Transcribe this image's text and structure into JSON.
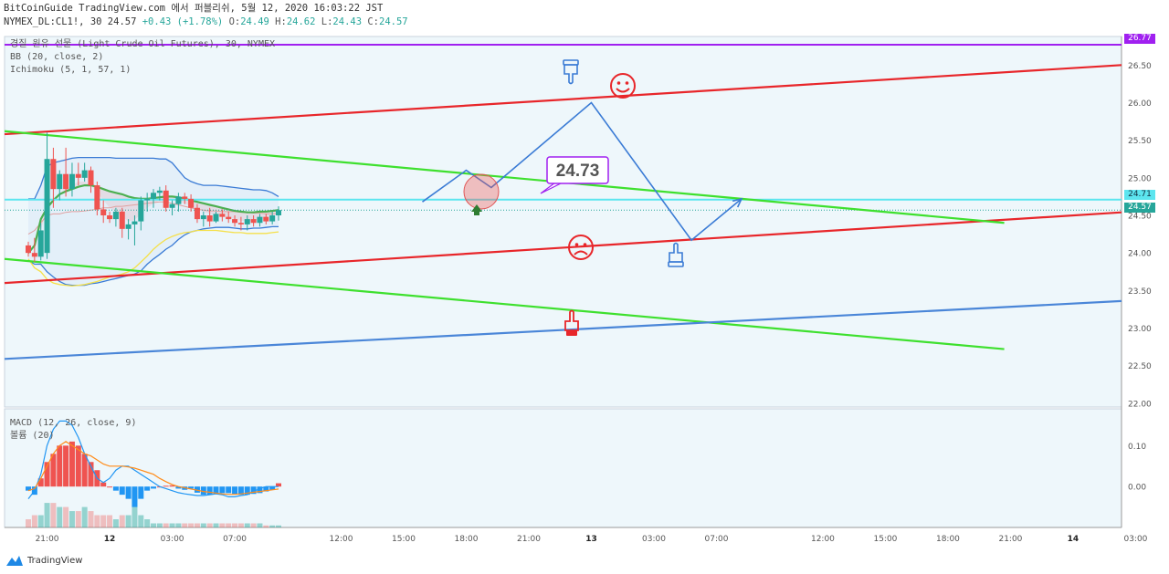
{
  "header": {
    "line1": "BitCoinGuide TradingView.com 에서 퍼블리쉬, 5월 12, 2020 16:03:22 JST",
    "symbol": "NYMEX_DL:CL1!, 30",
    "last": "24.57",
    "change": "+0.43 (+1.78%)",
    "o_label": "O:",
    "o": "24.49",
    "h_label": "H:",
    "h": "24.62",
    "l_label": "L:",
    "l": "24.43",
    "c_label": "C:",
    "c": "24.57"
  },
  "legend": {
    "title": "경질 원유 선물 (Light Crude Oil Futures), 30, NYMEX",
    "bb": "BB (20, close, 2)",
    "ichimoku": "Ichimoku (5, 1, 57, 1)",
    "macd": "MACD (12, 26, close, 9)",
    "volume": "볼륨 (20)"
  },
  "price_tags": {
    "top": "26.77",
    "cyan": "24.71",
    "last": "24.57"
  },
  "callout": "24.73",
  "logo": "TradingView",
  "colors": {
    "up": "#26a69a",
    "down": "#ef5350",
    "red_line": "#e8262a",
    "green_line": "#3ee02e",
    "blue_line": "#4a86d8",
    "cyan_line": "#5ce5ef",
    "purple_line": "#a020f0",
    "bb_band": "#3a7bd5",
    "ichimoku_yellow": "#f5e04a"
  },
  "chart_data": {
    "type": "candlestick",
    "main_axis": {
      "ylim": [
        21.95,
        26.88
      ],
      "ticks": [
        "26.50",
        "26.00",
        "25.50",
        "25.00",
        "24.50",
        "24.00",
        "23.50",
        "23.00",
        "22.50",
        "22.00"
      ],
      "tick_values": [
        26.5,
        26.0,
        25.5,
        25.0,
        24.5,
        24.0,
        23.5,
        23.0,
        22.5,
        22.0
      ]
    },
    "macd_axis": {
      "ylim": [
        -0.1,
        0.19
      ],
      "ticks": [
        "0.10",
        "0.00"
      ],
      "tick_values": [
        0.1,
        0.0
      ]
    },
    "x_ticks": [
      {
        "label": "21:00",
        "i": 3
      },
      {
        "label": "12",
        "i": 13
      },
      {
        "label": "03:00",
        "i": 23
      },
      {
        "label": "07:00",
        "i": 33
      },
      {
        "label": "12:00",
        "i": 50
      },
      {
        "label": "15:00",
        "i": 60
      },
      {
        "label": "18:00",
        "i": 70
      },
      {
        "label": "21:00",
        "i": 80
      },
      {
        "label": "13",
        "i": 90
      },
      {
        "label": "03:00",
        "i": 100
      },
      {
        "label": "07:00",
        "i": 110
      },
      {
        "label": "12:00",
        "i": 127
      },
      {
        "label": "15:00",
        "i": 137
      },
      {
        "label": "18:00",
        "i": 147
      },
      {
        "label": "21:00",
        "i": 157
      },
      {
        "label": "14",
        "i": 167
      },
      {
        "label": "03:00",
        "i": 177
      }
    ],
    "candles": [
      [
        24.1,
        24.15,
        23.95,
        24.0
      ],
      [
        24.0,
        24.2,
        23.88,
        23.95
      ],
      [
        23.95,
        24.4,
        23.9,
        24.3
      ],
      [
        24.0,
        25.6,
        23.92,
        25.25
      ],
      [
        25.25,
        25.4,
        24.6,
        24.85
      ],
      [
        24.85,
        25.1,
        24.7,
        25.05
      ],
      [
        25.05,
        25.4,
        24.75,
        24.85
      ],
      [
        24.85,
        25.2,
        24.75,
        25.05
      ],
      [
        25.05,
        25.2,
        24.9,
        25.0
      ],
      [
        25.0,
        25.2,
        24.95,
        25.1
      ],
      [
        25.1,
        25.15,
        24.8,
        24.9
      ],
      [
        24.9,
        24.95,
        24.5,
        24.58
      ],
      [
        24.58,
        24.7,
        24.4,
        24.5
      ],
      [
        24.5,
        24.55,
        24.4,
        24.45
      ],
      [
        24.45,
        24.6,
        24.35,
        24.55
      ],
      [
        24.55,
        24.6,
        24.2,
        24.32
      ],
      [
        24.32,
        24.45,
        24.18,
        24.38
      ],
      [
        24.38,
        24.5,
        24.1,
        24.42
      ],
      [
        24.42,
        24.75,
        24.3,
        24.7
      ],
      [
        24.7,
        24.8,
        24.55,
        24.72
      ],
      [
        24.72,
        24.85,
        24.6,
        24.8
      ],
      [
        24.8,
        24.88,
        24.7,
        24.83
      ],
      [
        24.83,
        24.9,
        24.55,
        24.6
      ],
      [
        24.6,
        24.7,
        24.5,
        24.65
      ],
      [
        24.65,
        24.8,
        24.55,
        24.75
      ],
      [
        24.75,
        24.8,
        24.65,
        24.72
      ],
      [
        24.72,
        24.78,
        24.55,
        24.6
      ],
      [
        24.6,
        24.65,
        24.4,
        24.45
      ],
      [
        24.45,
        24.55,
        24.35,
        24.5
      ],
      [
        24.5,
        24.6,
        24.35,
        24.42
      ],
      [
        24.42,
        24.55,
        24.4,
        24.52
      ],
      [
        24.52,
        24.58,
        24.42,
        24.48
      ],
      [
        24.48,
        24.55,
        24.4,
        24.45
      ],
      [
        24.45,
        24.5,
        24.35,
        24.4
      ],
      [
        24.4,
        24.48,
        24.3,
        24.38
      ],
      [
        24.38,
        24.5,
        24.3,
        24.45
      ],
      [
        24.45,
        24.5,
        24.35,
        24.4
      ],
      [
        24.4,
        24.52,
        24.35,
        24.48
      ],
      [
        24.48,
        24.52,
        24.38,
        24.42
      ],
      [
        24.42,
        24.55,
        24.38,
        24.5
      ],
      [
        24.5,
        24.62,
        24.43,
        24.57
      ]
    ],
    "bb_upper": [
      24.72,
      24.72,
      24.9,
      25.15,
      25.2,
      25.22,
      25.24,
      25.26,
      25.27,
      25.27,
      25.27,
      25.27,
      25.27,
      25.27,
      25.26,
      25.26,
      25.26,
      25.26,
      25.26,
      25.26,
      25.26,
      25.25,
      25.25,
      25.2,
      25.1,
      25.0,
      24.95,
      24.92,
      24.9,
      24.9,
      24.9,
      24.89,
      24.88,
      24.87,
      24.86,
      24.85,
      24.84,
      24.84,
      24.83,
      24.8,
      24.75
    ],
    "bb_basis": [
      24.25,
      24.3,
      24.4,
      24.5,
      24.52,
      24.52,
      24.54,
      24.55,
      24.55,
      24.56,
      24.57,
      24.58,
      24.6,
      24.6,
      24.62,
      24.62,
      24.63,
      24.64,
      24.65,
      24.66,
      24.67,
      24.68,
      24.68,
      24.66,
      24.64,
      24.62,
      24.6,
      24.58,
      24.57,
      24.56,
      24.56,
      24.55,
      24.55,
      24.55,
      24.54,
      24.54,
      24.53,
      24.53,
      24.52,
      24.52,
      24.52
    ],
    "bb_lower": [
      23.9,
      23.85,
      23.85,
      23.75,
      23.68,
      23.62,
      23.58,
      23.57,
      23.57,
      23.57,
      23.59,
      23.6,
      23.62,
      23.64,
      23.66,
      23.68,
      23.7,
      23.72,
      23.76,
      23.85,
      23.92,
      23.98,
      24.05,
      24.1,
      24.18,
      24.24,
      24.28,
      24.3,
      24.32,
      24.33,
      24.34,
      24.34,
      24.34,
      24.33,
      24.32,
      24.32,
      24.33,
      24.33,
      24.34,
      24.35,
      24.35
    ],
    "ichimoku_conversion": [
      24.05,
      24.1,
      24.3,
      24.6,
      24.7,
      24.8,
      24.85,
      24.9,
      24.95,
      24.95,
      24.9,
      24.8,
      24.7,
      24.6,
      24.55,
      24.48,
      24.42,
      24.44,
      24.52,
      24.6,
      24.66,
      24.7,
      24.72,
      24.7,
      24.68,
      24.66,
      24.62,
      24.58,
      24.55,
      24.52,
      24.5,
      24.49,
      24.47,
      24.45,
      24.43,
      24.42,
      24.43,
      24.45,
      24.47,
      24.5,
      24.53
    ],
    "ichimoku_base": [
      24.0,
      24.1,
      24.45,
      24.6,
      24.7,
      24.78,
      24.82,
      24.85,
      24.88,
      24.9,
      24.9,
      24.88,
      24.85,
      24.82,
      24.8,
      24.78,
      24.75,
      24.73,
      24.72,
      24.72,
      24.73,
      24.74,
      24.75,
      24.75,
      24.74,
      24.72,
      24.7,
      24.68,
      24.66,
      24.64,
      24.62,
      24.6,
      24.58,
      24.56,
      24.55,
      24.54,
      24.54,
      24.55,
      24.55,
      24.56,
      24.57
    ],
    "ichimoku_lagging": [
      23.92,
      23.8,
      23.75,
      23.65,
      23.6,
      23.58,
      23.57,
      23.56,
      23.57,
      23.58,
      23.6,
      23.62,
      23.65,
      23.68,
      23.7,
      23.72,
      23.75,
      23.8,
      23.88,
      23.96,
      24.05,
      24.12,
      24.18,
      24.22,
      24.25,
      24.27,
      24.28,
      24.3,
      24.3,
      24.3,
      24.3,
      24.29,
      24.28,
      24.27,
      24.27,
      24.26,
      24.26,
      24.26,
      24.26,
      24.27,
      24.28
    ],
    "macd_hist": [
      -0.01,
      -0.02,
      0.02,
      0.06,
      0.08,
      0.1,
      0.1,
      0.11,
      0.1,
      0.08,
      0.06,
      0.04,
      0.01,
      0.0,
      -0.01,
      -0.02,
      -0.03,
      -0.05,
      -0.03,
      -0.01,
      -0.005,
      0.0,
      0.002,
      0.003,
      -0.005,
      -0.008,
      -0.005,
      -0.015,
      -0.02,
      -0.02,
      -0.018,
      -0.016,
      -0.016,
      -0.018,
      -0.02,
      -0.02,
      -0.018,
      -0.016,
      -0.012,
      -0.008,
      0.008
    ],
    "macd_line": [
      -0.03,
      -0.01,
      0.03,
      0.1,
      0.14,
      0.16,
      0.16,
      0.15,
      0.12,
      0.08,
      0.05,
      0.02,
      0.01,
      0.02,
      0.04,
      0.05,
      0.05,
      0.04,
      0.03,
      0.02,
      0.01,
      0.0,
      -0.005,
      -0.01,
      -0.015,
      -0.018,
      -0.02,
      -0.022,
      -0.022,
      -0.02,
      -0.018,
      -0.02,
      -0.025,
      -0.025,
      -0.022,
      -0.02,
      -0.012,
      -0.005,
      0.0,
      0.0,
      0.0
    ],
    "macd_signal": [
      -0.01,
      -0.005,
      0.02,
      0.05,
      0.08,
      0.1,
      0.11,
      0.1,
      0.09,
      0.08,
      0.075,
      0.065,
      0.055,
      0.05,
      0.05,
      0.05,
      0.048,
      0.045,
      0.04,
      0.035,
      0.03,
      0.02,
      0.012,
      0.005,
      0.0,
      -0.003,
      -0.006,
      -0.009,
      -0.012,
      -0.014,
      -0.016,
      -0.018,
      -0.019,
      -0.019,
      -0.018,
      -0.016,
      -0.014,
      -0.012,
      -0.01,
      -0.008,
      -0.006
    ],
    "volume": [
      0.02,
      0.03,
      0.03,
      0.06,
      0.06,
      0.05,
      0.05,
      0.04,
      0.04,
      0.05,
      0.04,
      0.03,
      0.03,
      0.03,
      0.02,
      0.03,
      0.03,
      0.09,
      0.03,
      0.02,
      0.01,
      0.01,
      0.01,
      0.01,
      0.01,
      0.01,
      0.01,
      0.01,
      0.01,
      0.01,
      0.01,
      0.01,
      0.01,
      0.01,
      0.01,
      0.01,
      0.01,
      0.01,
      0.005,
      0.005,
      0.005
    ],
    "trendlines": [
      {
        "name": "red-upper-line",
        "color": "#e8262a",
        "from": [
          0,
          25.58
        ],
        "to": [
          180,
          26.5
        ]
      },
      {
        "name": "red-lower-line",
        "color": "#e8262a",
        "from": [
          0,
          23.6
        ],
        "to": [
          180,
          24.54
        ]
      },
      {
        "name": "green-upper-line",
        "color": "#3ee02e",
        "from": [
          0,
          25.62
        ],
        "to": [
          156,
          24.4
        ]
      },
      {
        "name": "green-lower-line",
        "color": "#3ee02e",
        "from": [
          0,
          23.92
        ],
        "to": [
          156,
          22.72
        ]
      },
      {
        "name": "blue-line",
        "color": "#4a86d8",
        "from": [
          0,
          22.59
        ],
        "to": [
          180,
          23.36
        ]
      }
    ],
    "horizontal_lines": [
      {
        "name": "purple-top-line",
        "color": "#a020f0",
        "value": 26.77
      },
      {
        "name": "cyan-level-line",
        "color": "#5ce5ef",
        "value": 24.71
      }
    ],
    "forecast_path": [
      [
        63,
        24.68
      ],
      [
        70,
        25.1
      ],
      [
        74,
        24.87
      ],
      [
        90,
        26.0
      ],
      [
        106,
        24.17
      ],
      [
        114,
        24.72
      ]
    ]
  }
}
